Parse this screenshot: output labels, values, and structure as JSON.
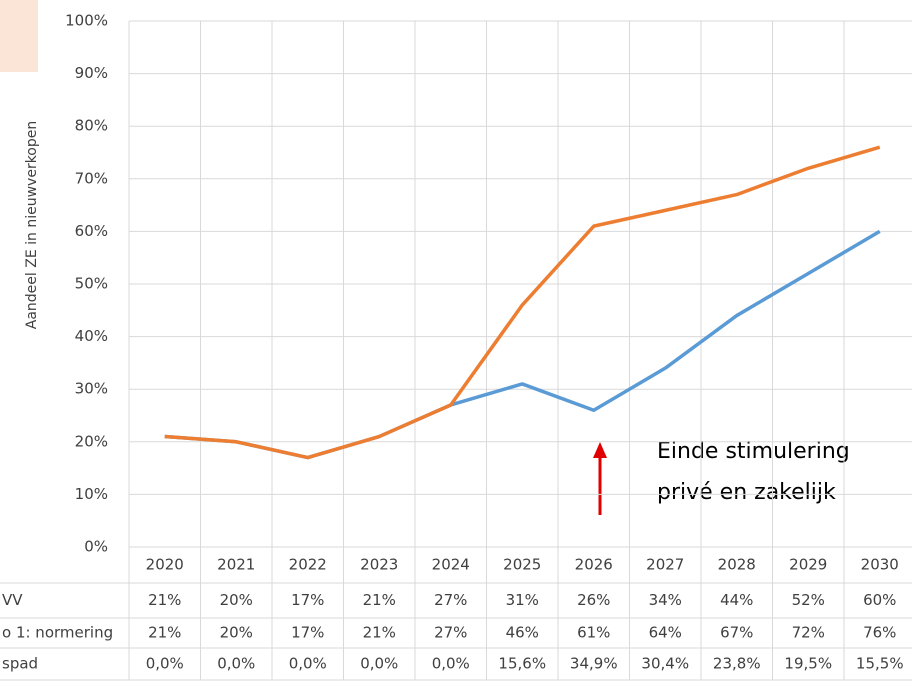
{
  "chart_data": {
    "type": "line",
    "y_axis_label": "Aandeel ZE in nieuwverkopen",
    "categories": [
      "2020",
      "2021",
      "2022",
      "2023",
      "2024",
      "2025",
      "2026",
      "2027",
      "2028",
      "2029",
      "2030"
    ],
    "series": [
      {
        "name": "VV",
        "color": "#5b9bd5",
        "values": [
          21,
          20,
          17,
          21,
          27,
          31,
          26,
          34,
          44,
          52,
          60
        ],
        "value_labels": [
          "21%",
          "20%",
          "17%",
          "21%",
          "27%",
          "31%",
          "26%",
          "34%",
          "44%",
          "52%",
          "60%"
        ]
      },
      {
        "name": "o 1: normering",
        "color": "#ed7d31",
        "values": [
          21,
          20,
          17,
          21,
          27,
          46,
          61,
          64,
          67,
          72,
          76
        ],
        "value_labels": [
          "21%",
          "20%",
          "17%",
          "21%",
          "27%",
          "46%",
          "61%",
          "64%",
          "67%",
          "72%",
          "76%"
        ]
      }
    ],
    "extra_rows": [
      {
        "name": "spad",
        "values": [
          0.0,
          0.0,
          0.0,
          0.0,
          0.0,
          15.6,
          34.9,
          30.4,
          23.8,
          19.5,
          15.5
        ],
        "value_labels": [
          "0,0%",
          "0,0%",
          "0,0%",
          "0,0%",
          "0,0%",
          "15,6%",
          "34,9%",
          "30,4%",
          "23,8%",
          "19,5%",
          "15,5%"
        ]
      }
    ],
    "ylim": [
      0,
      100
    ],
    "yticks": [
      {
        "value": 0,
        "label": "0%"
      },
      {
        "value": 10,
        "label": "10%"
      },
      {
        "value": 20,
        "label": "20%"
      },
      {
        "value": 30,
        "label": "30%"
      },
      {
        "value": 40,
        "label": "40%"
      },
      {
        "value": 50,
        "label": "50%"
      },
      {
        "value": 60,
        "label": "60%"
      },
      {
        "value": 70,
        "label": "70%"
      },
      {
        "value": 80,
        "label": "80%"
      },
      {
        "value": 90,
        "label": "90%"
      },
      {
        "value": 100,
        "label": "100%"
      }
    ],
    "grid": true,
    "annotation": [
      "Einde stimulering",
      "privé en zakelijk"
    ]
  }
}
